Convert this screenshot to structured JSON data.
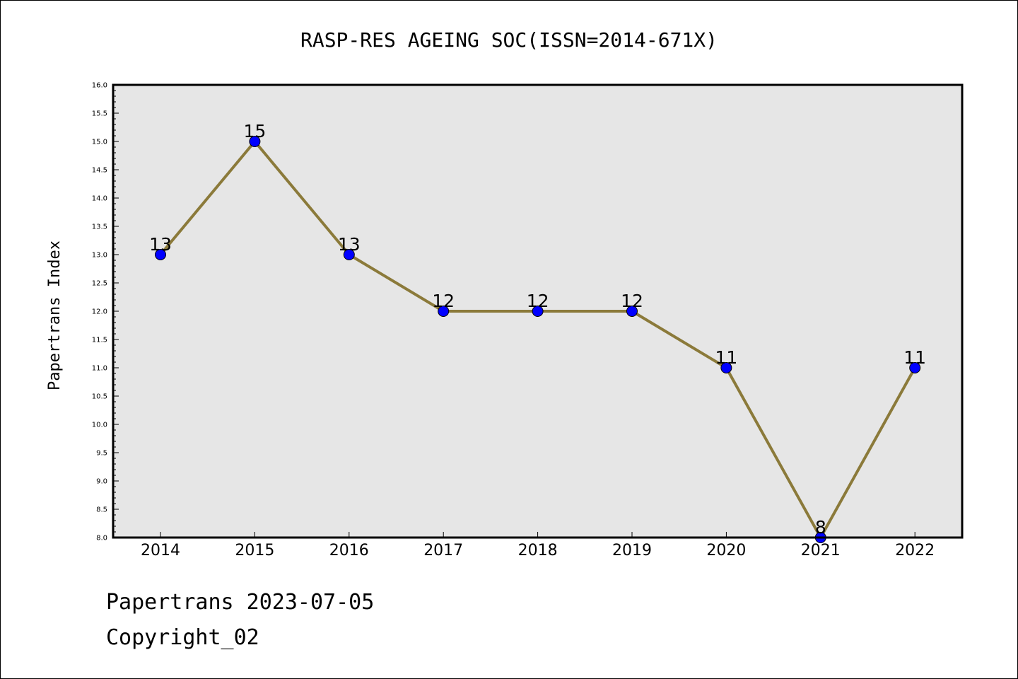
{
  "chart_data": {
    "type": "line",
    "title": "RASP-RES AGEING SOC(ISSN=2014-671X)",
    "xlabel": "",
    "ylabel": "Papertrans Index",
    "categories": [
      "2014",
      "2015",
      "2016",
      "2017",
      "2018",
      "2019",
      "2020",
      "2021",
      "2022"
    ],
    "values": [
      13,
      15,
      13,
      12,
      12,
      12,
      11,
      8,
      11
    ],
    "data_labels": [
      "13",
      "15",
      "13",
      "12",
      "12",
      "12",
      "11",
      "8",
      "11"
    ],
    "ylim": [
      8.0,
      16.0
    ],
    "yticks": [
      "8.0",
      "8.5",
      "9.0",
      "9.5",
      "10.0",
      "10.5",
      "11.0",
      "11.5",
      "12.0",
      "12.5",
      "13.0",
      "13.5",
      "14.0",
      "14.5",
      "15.0",
      "15.5",
      "16.0"
    ],
    "grid": false,
    "legend": "none",
    "colors": {
      "line": "#8b7a3a",
      "marker": "#0000ff",
      "plot_background": "#e6e6e6"
    }
  },
  "footer": {
    "date_line": "Papertrans 2023-07-05",
    "copyright": "Copyright_02"
  }
}
